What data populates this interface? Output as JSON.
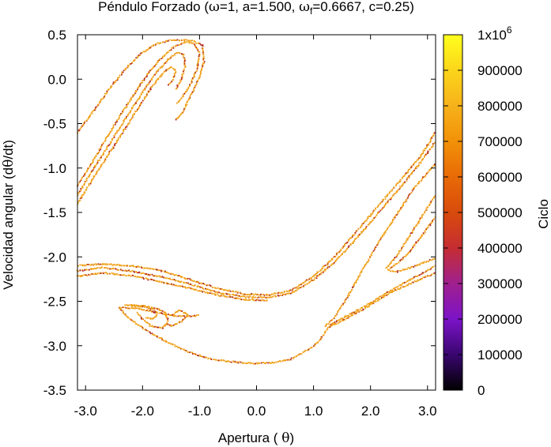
{
  "chart_data": {
    "type": "scatter",
    "title": {
      "text_1": "Péndulo Forzado (",
      "omega": "ω",
      "text_2": "=1, a=1.500, ",
      "omega_f": "ω",
      "f_sub": "f",
      "text_3": "=0.6667, c=0.25)"
    },
    "xlabel": {
      "prefix": "Apertura ( ",
      "theta": "θ",
      "suffix": ")"
    },
    "ylabel": {
      "prefix": "Velocidad angular (d",
      "theta": "θ",
      "suffix": "/dt)"
    },
    "xlim": [
      -3.1416,
      3.1416
    ],
    "ylim": [
      -3.5,
      0.5
    ],
    "xticks": [
      {
        "value": -3.0,
        "label": "-3.0"
      },
      {
        "value": -2.0,
        "label": "-2.0"
      },
      {
        "value": -1.0,
        "label": "-1.0"
      },
      {
        "value": 0.0,
        "label": "0.0"
      },
      {
        "value": 1.0,
        "label": "1.0"
      },
      {
        "value": 2.0,
        "label": "2.0"
      },
      {
        "value": 3.0,
        "label": "3.0"
      }
    ],
    "yticks": [
      {
        "value": 0.5,
        "label": "0.5"
      },
      {
        "value": 0.0,
        "label": "0.0"
      },
      {
        "value": -0.5,
        "label": "-0.5"
      },
      {
        "value": -1.0,
        "label": "-1.0"
      },
      {
        "value": -1.5,
        "label": "-1.5"
      },
      {
        "value": -2.0,
        "label": "-2.0"
      },
      {
        "value": -2.5,
        "label": "-2.5"
      },
      {
        "value": -3.0,
        "label": "-3.0"
      },
      {
        "value": -3.5,
        "label": "-3.5"
      }
    ],
    "grid": false,
    "colorbar": {
      "label": "Ciclo",
      "range": [
        0,
        1000000
      ],
      "ticks": [
        {
          "value": 1000000,
          "label": "1x10",
          "exp": "6"
        },
        {
          "value": 900000,
          "label": "900000"
        },
        {
          "value": 800000,
          "label": "800000"
        },
        {
          "value": 700000,
          "label": "700000"
        },
        {
          "value": 600000,
          "label": "600000"
        },
        {
          "value": 500000,
          "label": "500000"
        },
        {
          "value": 400000,
          "label": "400000"
        },
        {
          "value": 300000,
          "label": "300000"
        },
        {
          "value": 200000,
          "label": "200000"
        },
        {
          "value": 100000,
          "label": "100000"
        },
        {
          "value": 0,
          "label": "0"
        }
      ],
      "palette": [
        "#000000",
        "#3a0670",
        "#7c13c8",
        "#a0208e",
        "#c52d32",
        "#d84b0c",
        "#e86a06",
        "#f29108",
        "#f7b21a",
        "#fbd51a",
        "#ffff1e"
      ]
    },
    "dominant_point_color": "#f0a018",
    "secondary_point_color": "#b32a1e",
    "series": [
      {
        "points": [
          [
            -3.14,
            -1.2
          ],
          [
            -2.8,
            -0.85
          ],
          [
            -2.5,
            -0.52
          ],
          [
            -2.2,
            -0.22
          ],
          [
            -1.95,
            0.02
          ],
          [
            -1.7,
            0.22
          ],
          [
            -1.45,
            0.36
          ],
          [
            -1.25,
            0.42
          ],
          [
            -1.1,
            0.4
          ],
          [
            -1.0,
            0.3
          ],
          [
            -1.05,
            0.1
          ],
          [
            -1.15,
            -0.05
          ],
          [
            -1.3,
            -0.2
          ],
          [
            -1.4,
            -0.28
          ]
        ]
      },
      {
        "points": [
          [
            -3.14,
            -0.6
          ],
          [
            -2.85,
            -0.35
          ],
          [
            -2.55,
            -0.08
          ],
          [
            -2.25,
            0.15
          ],
          [
            -2.0,
            0.3
          ],
          [
            -1.75,
            0.4
          ],
          [
            -1.5,
            0.44
          ],
          [
            -1.3,
            0.44
          ],
          [
            -1.12,
            0.43
          ],
          [
            -0.95,
            0.38
          ],
          [
            -0.92,
            0.2
          ],
          [
            -1.0,
            0.02
          ],
          [
            -1.15,
            -0.18
          ],
          [
            -1.3,
            -0.38
          ],
          [
            -1.42,
            -0.47
          ]
        ]
      },
      {
        "points": [
          [
            -3.14,
            -1.3
          ],
          [
            -2.85,
            -1.0
          ],
          [
            -2.55,
            -0.7
          ],
          [
            -2.25,
            -0.4
          ],
          [
            -2.0,
            -0.15
          ],
          [
            -1.75,
            0.08
          ],
          [
            -1.55,
            0.22
          ],
          [
            -1.4,
            0.3
          ],
          [
            -1.28,
            0.28
          ],
          [
            -1.25,
            0.15
          ],
          [
            -1.32,
            0.0
          ],
          [
            -1.42,
            -0.12
          ]
        ]
      },
      {
        "points": [
          [
            -3.14,
            -1.4
          ],
          [
            -2.9,
            -1.15
          ],
          [
            -2.6,
            -0.85
          ],
          [
            -2.3,
            -0.55
          ],
          [
            -2.05,
            -0.3
          ],
          [
            -1.85,
            -0.1
          ],
          [
            -1.65,
            0.06
          ],
          [
            -1.5,
            0.14
          ],
          [
            -1.42,
            0.1
          ],
          [
            -1.46,
            0.0
          ],
          [
            -1.55,
            -0.08
          ]
        ]
      },
      {
        "points": [
          [
            -3.14,
            -2.1
          ],
          [
            -2.7,
            -2.08
          ],
          [
            -2.2,
            -2.1
          ],
          [
            -1.7,
            -2.15
          ],
          [
            -1.2,
            -2.25
          ],
          [
            -0.7,
            -2.35
          ],
          [
            -0.2,
            -2.42
          ],
          [
            0.2,
            -2.43
          ],
          [
            0.6,
            -2.38
          ],
          [
            1.0,
            -2.22
          ],
          [
            1.4,
            -1.98
          ],
          [
            1.8,
            -1.68
          ],
          [
            2.2,
            -1.38
          ],
          [
            2.6,
            -1.08
          ],
          [
            2.9,
            -0.85
          ],
          [
            3.14,
            -0.6
          ]
        ]
      },
      {
        "points": [
          [
            -3.14,
            -2.16
          ],
          [
            -2.7,
            -2.12
          ],
          [
            -2.2,
            -2.16
          ],
          [
            -1.7,
            -2.22
          ],
          [
            -1.2,
            -2.3
          ],
          [
            -0.7,
            -2.4
          ],
          [
            -0.2,
            -2.45
          ],
          [
            0.2,
            -2.46
          ],
          [
            0.6,
            -2.41
          ],
          [
            1.0,
            -2.26
          ],
          [
            1.4,
            -2.04
          ],
          [
            1.8,
            -1.76
          ],
          [
            2.2,
            -1.46
          ],
          [
            2.6,
            -1.16
          ],
          [
            2.9,
            -0.92
          ],
          [
            3.14,
            -0.7
          ]
        ]
      },
      {
        "points": [
          [
            -3.14,
            -2.22
          ],
          [
            -2.7,
            -2.18
          ],
          [
            -2.2,
            -2.21
          ],
          [
            -1.7,
            -2.28
          ],
          [
            -1.2,
            -2.35
          ],
          [
            -0.7,
            -2.43
          ],
          [
            -0.2,
            -2.48
          ],
          [
            0.2,
            -2.49
          ]
        ]
      },
      {
        "points": [
          [
            1.2,
            -2.78
          ],
          [
            1.35,
            -2.7
          ],
          [
            1.6,
            -2.45
          ],
          [
            1.9,
            -2.1
          ],
          [
            2.2,
            -1.78
          ],
          [
            2.5,
            -1.48
          ],
          [
            2.8,
            -1.2
          ],
          [
            3.14,
            -0.95
          ]
        ]
      },
      {
        "points": [
          [
            1.25,
            -2.8
          ],
          [
            1.5,
            -2.72
          ],
          [
            1.9,
            -2.58
          ],
          [
            2.3,
            -2.42
          ],
          [
            2.7,
            -2.3
          ],
          [
            3.14,
            -2.18
          ]
        ]
      },
      {
        "points": [
          [
            1.28,
            -2.77
          ],
          [
            1.6,
            -2.66
          ],
          [
            2.0,
            -2.52
          ],
          [
            2.4,
            -2.36
          ],
          [
            2.8,
            -2.22
          ],
          [
            3.14,
            -2.1
          ]
        ]
      },
      {
        "points": [
          [
            2.28,
            -2.12
          ],
          [
            2.45,
            -2.0
          ],
          [
            2.65,
            -1.8
          ],
          [
            2.9,
            -1.55
          ],
          [
            3.14,
            -1.3
          ]
        ]
      },
      {
        "points": [
          [
            2.3,
            -2.15
          ],
          [
            2.45,
            -2.17
          ],
          [
            2.7,
            -2.12
          ],
          [
            2.95,
            -2.06
          ],
          [
            3.14,
            -2.02
          ]
        ]
      },
      {
        "points": [
          [
            2.35,
            -2.13
          ],
          [
            2.5,
            -2.06
          ],
          [
            2.7,
            -1.93
          ],
          [
            2.95,
            -1.72
          ],
          [
            3.14,
            -1.55
          ]
        ]
      },
      {
        "points": [
          [
            -2.4,
            -2.57
          ],
          [
            -2.1,
            -2.58
          ],
          [
            -1.8,
            -2.62
          ],
          [
            -1.5,
            -2.66
          ],
          [
            -1.2,
            -2.67
          ],
          [
            -1.0,
            -2.66
          ]
        ]
      },
      {
        "points": [
          [
            -2.4,
            -2.57
          ],
          [
            -2.3,
            -2.66
          ],
          [
            -2.0,
            -2.8
          ],
          [
            -1.6,
            -2.95
          ],
          [
            -1.2,
            -3.07
          ],
          [
            -0.8,
            -3.15
          ],
          [
            -0.3,
            -3.19
          ],
          [
            0.0,
            -3.2
          ],
          [
            0.3,
            -3.19
          ],
          [
            0.6,
            -3.15
          ],
          [
            0.9,
            -3.05
          ],
          [
            1.1,
            -2.95
          ],
          [
            1.25,
            -2.8
          ]
        ]
      },
      {
        "points": [
          [
            -2.3,
            -2.54
          ],
          [
            -2.0,
            -2.55
          ],
          [
            -1.75,
            -2.58
          ],
          [
            -1.6,
            -2.63
          ],
          [
            -1.55,
            -2.72
          ],
          [
            -1.65,
            -2.8
          ],
          [
            -1.85,
            -2.78
          ],
          [
            -2.0,
            -2.7
          ],
          [
            -2.1,
            -2.62
          ]
        ]
      },
      {
        "points": [
          [
            -2.2,
            -2.55
          ],
          [
            -1.95,
            -2.56
          ],
          [
            -1.8,
            -2.6
          ],
          [
            -1.75,
            -2.66
          ],
          [
            -1.82,
            -2.7
          ],
          [
            -1.95,
            -2.68
          ]
        ]
      },
      {
        "points": [
          [
            -1.5,
            -2.66
          ],
          [
            -1.35,
            -2.6
          ],
          [
            -1.2,
            -2.65
          ],
          [
            -1.3,
            -2.72
          ],
          [
            -1.5,
            -2.78
          ],
          [
            -1.6,
            -2.75
          ]
        ]
      }
    ]
  }
}
